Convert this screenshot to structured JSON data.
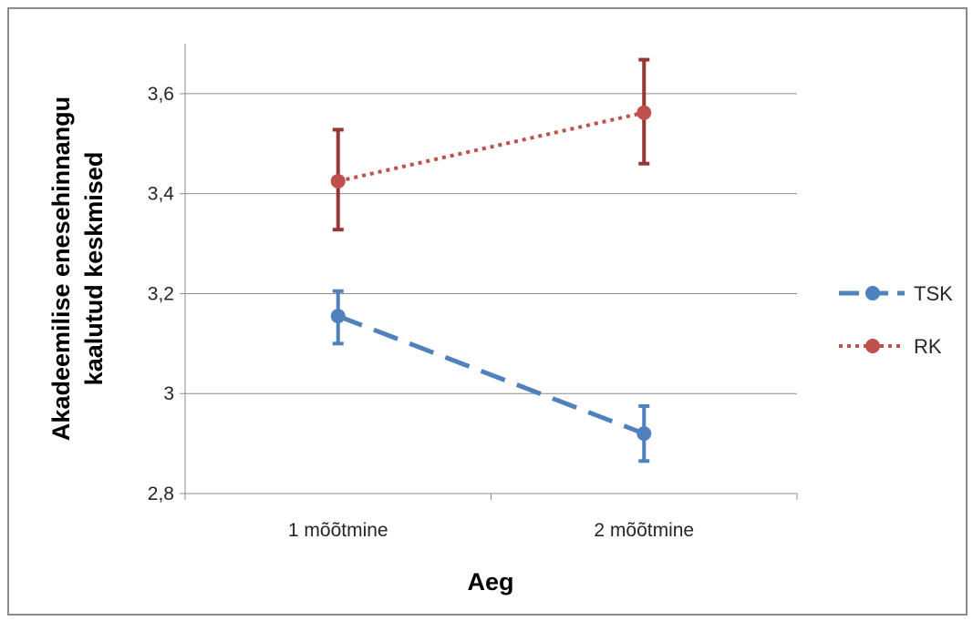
{
  "chart_data": {
    "type": "line",
    "title": "",
    "xlabel": "Aeg",
    "ylabel_lines": [
      "Akadeemilise enesehinnangu",
      "kaalutud keskmised"
    ],
    "categories": [
      "1 mõõtmine",
      "2 mõõtmine"
    ],
    "ylim": [
      2.8,
      3.7
    ],
    "yticks": [
      2.8,
      3.0,
      3.2,
      3.4,
      3.6
    ],
    "ytick_labels": [
      "2,8",
      "3",
      "3,2",
      "3,4",
      "3,6"
    ],
    "grid": true,
    "legend_position": "right",
    "series": [
      {
        "name": "TSK",
        "values": [
          3.155,
          2.92
        ],
        "error_low": [
          3.1,
          2.865
        ],
        "error_high": [
          3.205,
          2.975
        ],
        "color": "#4f81bd",
        "error_color": "#4f81bd",
        "line_style": "dashed"
      },
      {
        "name": "RK",
        "values": [
          3.425,
          3.562
        ],
        "error_low": [
          3.328,
          3.46
        ],
        "error_high": [
          3.528,
          3.668
        ],
        "color": "#c0504d",
        "error_color": "#953735",
        "line_style": "dotted"
      }
    ]
  }
}
